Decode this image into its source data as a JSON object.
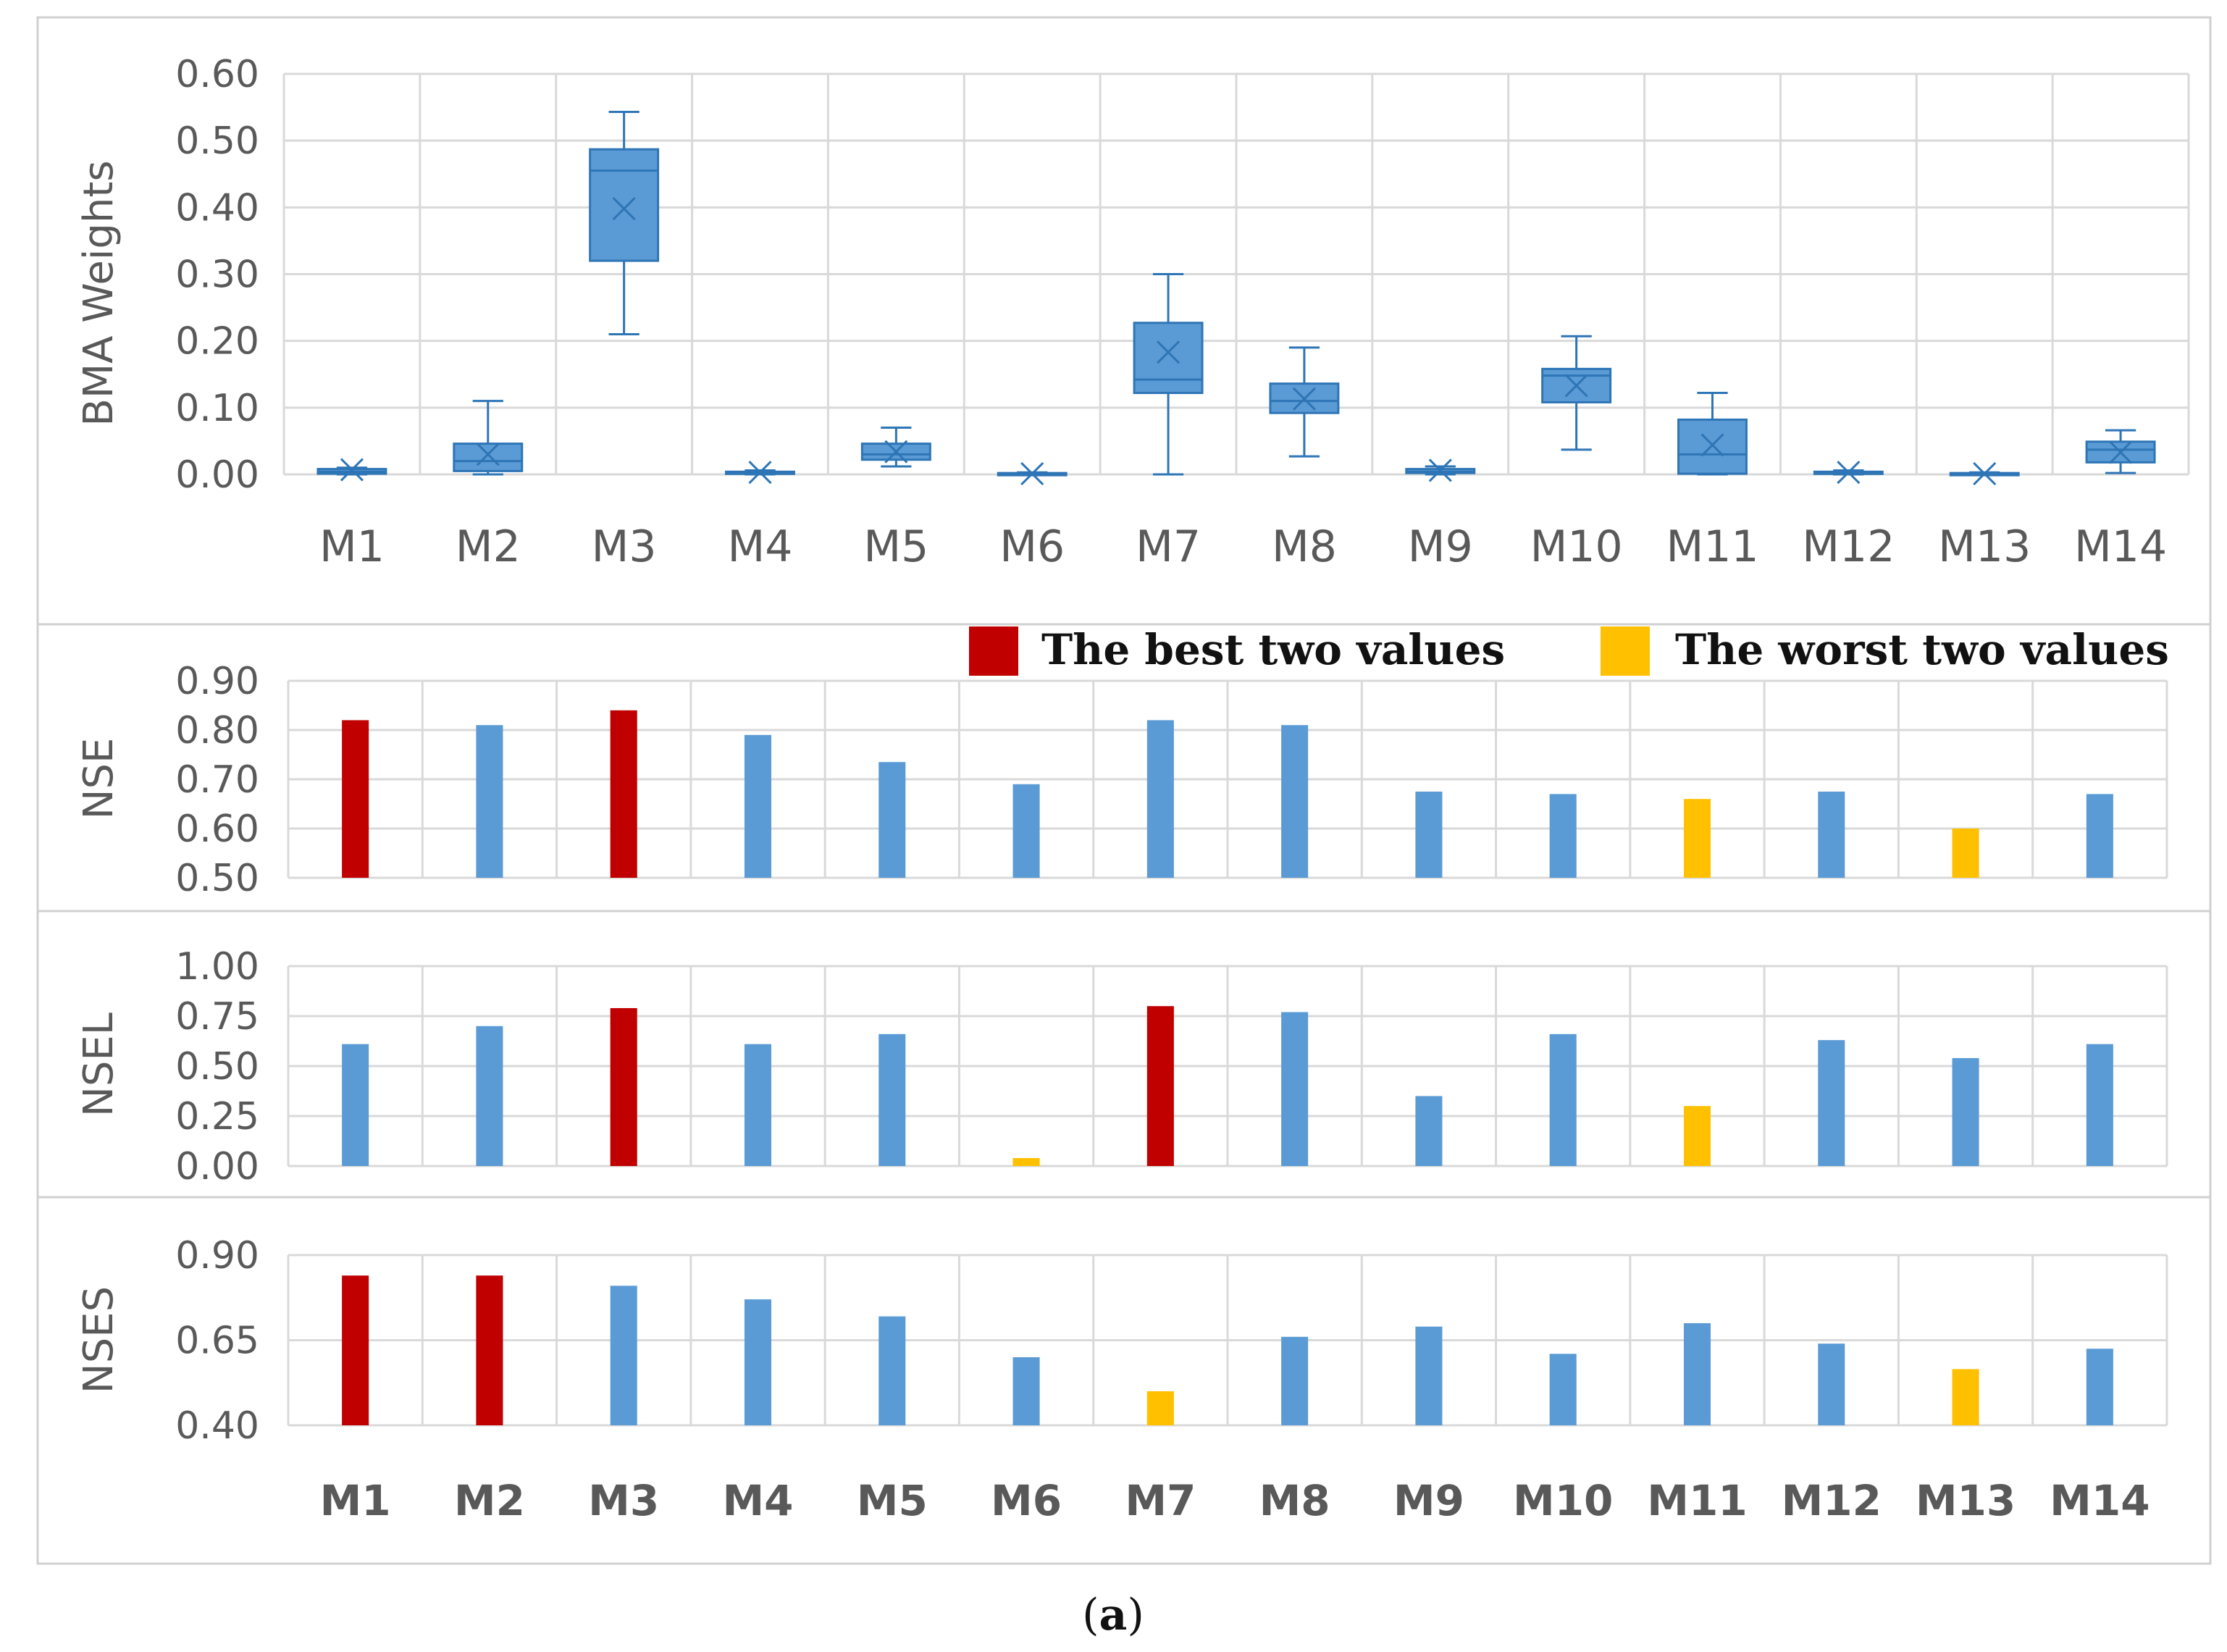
{
  "colors": {
    "blue": "#5b9bd5",
    "best": "#c00000",
    "worst": "#ffc000",
    "box": "#5b9bd5",
    "boxLine": "#2e75b6",
    "grid": "#d9d9d9",
    "frame": "#bfbfbf"
  },
  "caption": {
    "open": "(",
    "letter": "a",
    "close": ")"
  },
  "legend": {
    "best": "The best two values",
    "worst": "The worst two values"
  },
  "chart_data": [
    {
      "type": "box",
      "ylabel": "BMA Weights",
      "ylim": [
        0,
        0.6
      ],
      "yticks": [
        "0.00",
        "0.10",
        "0.20",
        "0.30",
        "0.40",
        "0.50",
        "0.60"
      ],
      "categories": [
        "M1",
        "M2",
        "M3",
        "M4",
        "M5",
        "M6",
        "M7",
        "M8",
        "M9",
        "M10",
        "M11",
        "M12",
        "M13",
        "M14"
      ],
      "boxes": [
        {
          "min": 0.0,
          "q1": 0.001,
          "median": 0.004,
          "q3": 0.008,
          "max": 0.01,
          "mean": 0.007
        },
        {
          "min": 0.0,
          "q1": 0.005,
          "median": 0.02,
          "q3": 0.046,
          "max": 0.11,
          "mean": 0.03
        },
        {
          "min": 0.21,
          "q1": 0.32,
          "median": 0.455,
          "q3": 0.487,
          "max": 0.543,
          "mean": 0.398
        },
        {
          "min": 0.0,
          "q1": 0.001,
          "median": 0.002,
          "q3": 0.004,
          "max": 0.006,
          "mean": 0.003
        },
        {
          "min": 0.012,
          "q1": 0.022,
          "median": 0.03,
          "q3": 0.046,
          "max": 0.07,
          "mean": 0.034
        },
        {
          "min": 0.0,
          "q1": 0.0,
          "median": 0.001,
          "q3": 0.002,
          "max": 0.003,
          "mean": 0.001
        },
        {
          "min": 0.0,
          "q1": 0.122,
          "median": 0.142,
          "q3": 0.227,
          "max": 0.3,
          "mean": 0.183
        },
        {
          "min": 0.027,
          "q1": 0.092,
          "median": 0.11,
          "q3": 0.136,
          "max": 0.19,
          "mean": 0.113
        },
        {
          "min": 0.0,
          "q1": 0.002,
          "median": 0.004,
          "q3": 0.008,
          "max": 0.012,
          "mean": 0.006
        },
        {
          "min": 0.037,
          "q1": 0.108,
          "median": 0.148,
          "q3": 0.158,
          "max": 0.207,
          "mean": 0.133
        },
        {
          "min": 0.0,
          "q1": 0.001,
          "median": 0.03,
          "q3": 0.082,
          "max": 0.122,
          "mean": 0.044
        },
        {
          "min": 0.0,
          "q1": 0.001,
          "median": 0.002,
          "q3": 0.004,
          "max": 0.006,
          "mean": 0.003
        },
        {
          "min": 0.0,
          "q1": 0.0,
          "median": 0.001,
          "q3": 0.002,
          "max": 0.003,
          "mean": 0.001
        },
        {
          "min": 0.002,
          "q1": 0.018,
          "median": 0.037,
          "q3": 0.049,
          "max": 0.066,
          "mean": 0.033
        }
      ]
    },
    {
      "type": "bar",
      "ylabel": "NSE",
      "ylim": [
        0.5,
        0.9
      ],
      "yticks": [
        "0.50",
        "0.60",
        "0.70",
        "0.80",
        "0.90"
      ],
      "categories": [
        "M1",
        "M2",
        "M3",
        "M4",
        "M5",
        "M6",
        "M7",
        "M8",
        "M9",
        "M10",
        "M11",
        "M12",
        "M13",
        "M14"
      ],
      "values": [
        0.82,
        0.81,
        0.84,
        0.79,
        0.735,
        0.69,
        0.82,
        0.81,
        0.675,
        0.67,
        0.66,
        0.675,
        0.6,
        0.67
      ],
      "highlight": [
        "best",
        "none",
        "best",
        "none",
        "none",
        "none",
        "none",
        "none",
        "none",
        "none",
        "worst",
        "none",
        "worst",
        "none"
      ]
    },
    {
      "type": "bar",
      "ylabel": "NSEL",
      "ylim": [
        0,
        1
      ],
      "yticks": [
        "0.00",
        "0.25",
        "0.50",
        "0.75",
        "1.00"
      ],
      "categories": [
        "M1",
        "M2",
        "M3",
        "M4",
        "M5",
        "M6",
        "M7",
        "M8",
        "M9",
        "M10",
        "M11",
        "M12",
        "M13",
        "M14"
      ],
      "values": [
        0.61,
        0.7,
        0.79,
        0.61,
        0.66,
        0.04,
        0.8,
        0.77,
        0.35,
        0.66,
        0.3,
        0.63,
        0.54,
        0.61
      ],
      "highlight": [
        "none",
        "none",
        "best",
        "none",
        "none",
        "worst",
        "best",
        "none",
        "none",
        "none",
        "worst",
        "none",
        "none",
        "none"
      ]
    },
    {
      "type": "bar",
      "ylabel": "NSES",
      "ylim": [
        0.4,
        0.9
      ],
      "yticks": [
        "0.40",
        "0.65",
        "0.90"
      ],
      "categories": [
        "M1",
        "M2",
        "M3",
        "M4",
        "M5",
        "M6",
        "M7",
        "M8",
        "M9",
        "M10",
        "M11",
        "M12",
        "M13",
        "M14"
      ],
      "values": [
        0.84,
        0.84,
        0.81,
        0.77,
        0.72,
        0.6,
        0.5,
        0.66,
        0.69,
        0.61,
        0.7,
        0.64,
        0.565,
        0.625
      ],
      "highlight": [
        "best",
        "best",
        "none",
        "none",
        "none",
        "none",
        "worst",
        "none",
        "none",
        "none",
        "none",
        "none",
        "worst",
        "none"
      ],
      "xlabels_bold": true
    }
  ]
}
